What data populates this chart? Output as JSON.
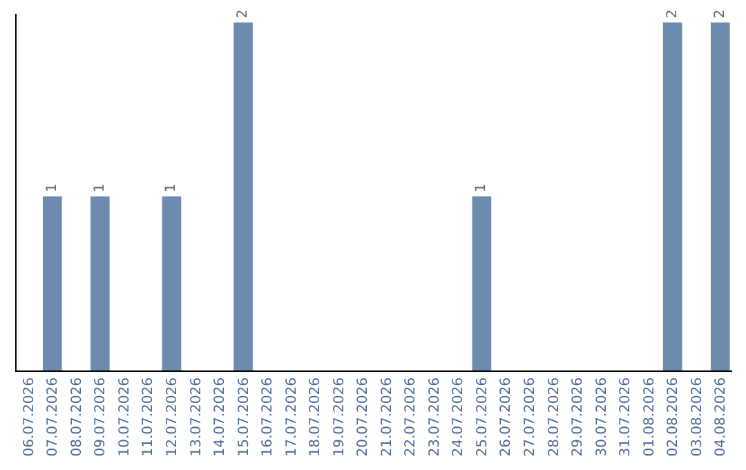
{
  "chart_data": {
    "type": "bar",
    "categories": [
      "06.07.2026",
      "07.07.2026",
      "08.07.2026",
      "09.07.2026",
      "10.07.2026",
      "11.07.2026",
      "12.07.2026",
      "13.07.2026",
      "14.07.2026",
      "15.07.2026",
      "16.07.2026",
      "17.07.2026",
      "18.07.2026",
      "19.07.2026",
      "20.07.2026",
      "21.07.2026",
      "22.07.2026",
      "23.07.2026",
      "24.07.2026",
      "25.07.2026",
      "26.07.2026",
      "27.07.2026",
      "28.07.2026",
      "29.07.2026",
      "30.07.2026",
      "31.07.2026",
      "01.08.2026",
      "02.08.2026",
      "03.08.2026",
      "04.08.2026"
    ],
    "values": [
      0,
      1,
      0,
      1,
      0,
      0,
      1,
      0,
      0,
      2,
      0,
      0,
      0,
      0,
      0,
      0,
      0,
      0,
      0,
      1,
      0,
      0,
      0,
      0,
      0,
      0,
      0,
      2,
      0,
      2
    ],
    "value_labels": [
      null,
      "1",
      null,
      "1",
      null,
      null,
      "1",
      null,
      null,
      "2",
      null,
      null,
      null,
      null,
      null,
      null,
      null,
      null,
      null,
      "1",
      null,
      null,
      null,
      null,
      null,
      null,
      null,
      "2",
      null,
      "2"
    ],
    "color": "#6b8cae",
    "ylim": [
      0,
      2.05
    ],
    "grid": false
  }
}
